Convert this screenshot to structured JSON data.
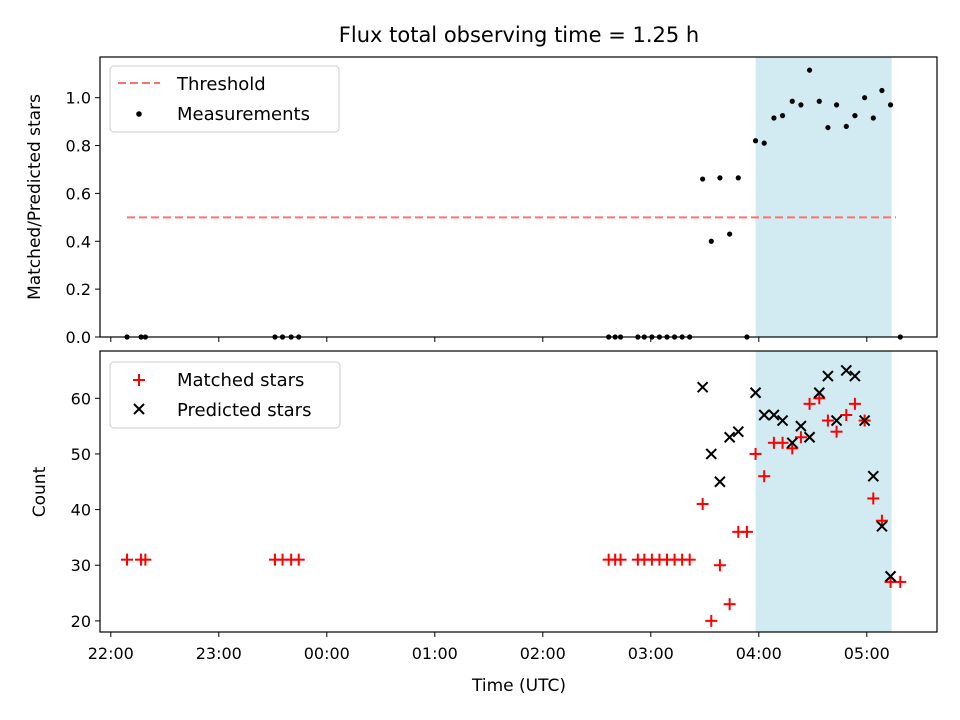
{
  "chart_data": {
    "title": "Flux total observing time = 1.25 h",
    "xlabel": "Time (UTC)",
    "x_unit": "hours relative to 00:00 UTC",
    "xlim": [
      -2.1,
      5.65
    ],
    "x_ticks": [
      {
        "value": -2,
        "label": "22:00"
      },
      {
        "value": -1,
        "label": "23:00"
      },
      {
        "value": 0,
        "label": "00:00"
      },
      {
        "value": 1,
        "label": "01:00"
      },
      {
        "value": 2,
        "label": "02:00"
      },
      {
        "value": 3,
        "label": "03:00"
      },
      {
        "value": 4,
        "label": "04:00"
      },
      {
        "value": 5,
        "label": "05:00"
      }
    ],
    "highlight_span": {
      "x_start": 3.97,
      "x_end": 5.23,
      "color": "#add8e6"
    },
    "panels": [
      {
        "id": "ratio",
        "type": "scatter",
        "ylabel": "Matched/Predicted stars",
        "ylim": [
          0,
          1.17
        ],
        "y_ticks": [
          0.0,
          0.2,
          0.4,
          0.6,
          0.8,
          1.0
        ],
        "y_tick_labels": [
          "0.0",
          "0.2",
          "0.4",
          "0.6",
          "0.8",
          "1.0"
        ],
        "legend": [
          {
            "label": "Threshold",
            "key": "threshold"
          },
          {
            "label": "Measurements",
            "key": "measurements"
          }
        ],
        "threshold": {
          "label": "Threshold",
          "y": 0.5,
          "x_start": -1.85,
          "x_end": 5.27,
          "color": "#ff7070"
        },
        "measurements": {
          "label": "Measurements",
          "color": "#000000",
          "points": [
            [
              -1.85,
              0.0
            ],
            [
              -1.72,
              0.0
            ],
            [
              -1.68,
              0.0
            ],
            [
              -0.48,
              0.0
            ],
            [
              -0.41,
              0.0
            ],
            [
              -0.33,
              0.0
            ],
            [
              -0.26,
              0.0
            ],
            [
              2.61,
              0.0
            ],
            [
              2.67,
              0.0
            ],
            [
              2.72,
              0.0
            ],
            [
              2.88,
              0.0
            ],
            [
              2.94,
              0.0
            ],
            [
              3.01,
              0.0
            ],
            [
              3.08,
              0.0
            ],
            [
              3.15,
              0.0
            ],
            [
              3.22,
              0.0
            ],
            [
              3.29,
              0.0
            ],
            [
              3.36,
              0.0
            ],
            [
              3.48,
              0.66
            ],
            [
              3.56,
              0.4
            ],
            [
              3.64,
              0.665
            ],
            [
              3.73,
              0.43
            ],
            [
              3.81,
              0.665
            ],
            [
              3.89,
              0.0
            ],
            [
              3.97,
              0.82
            ],
            [
              4.05,
              0.81
            ],
            [
              4.14,
              0.915
            ],
            [
              4.22,
              0.925
            ],
            [
              4.31,
              0.985
            ],
            [
              4.39,
              0.97
            ],
            [
              4.47,
              1.115
            ],
            [
              4.56,
              0.985
            ],
            [
              4.64,
              0.875
            ],
            [
              4.72,
              0.97
            ],
            [
              4.81,
              0.88
            ],
            [
              4.89,
              0.925
            ],
            [
              4.98,
              1.0
            ],
            [
              5.06,
              0.915
            ],
            [
              5.14,
              1.03
            ],
            [
              5.22,
              0.97
            ],
            [
              5.31,
              0.0
            ]
          ]
        }
      },
      {
        "id": "counts",
        "type": "scatter",
        "ylabel": "Count",
        "ylim": [
          18,
          68.5
        ],
        "y_ticks": [
          20,
          30,
          40,
          50,
          60
        ],
        "y_tick_labels": [
          "20",
          "30",
          "40",
          "50",
          "60"
        ],
        "legend": [
          {
            "label": "Matched stars",
            "key": "matched"
          },
          {
            "label": "Predicted stars",
            "key": "predicted"
          }
        ],
        "matched": {
          "label": "Matched stars",
          "color": "#ff0000",
          "points": [
            [
              -1.85,
              31
            ],
            [
              -1.72,
              31
            ],
            [
              -1.68,
              31
            ],
            [
              -0.48,
              31
            ],
            [
              -0.41,
              31
            ],
            [
              -0.33,
              31
            ],
            [
              -0.26,
              31
            ],
            [
              2.61,
              31
            ],
            [
              2.67,
              31
            ],
            [
              2.72,
              31
            ],
            [
              2.88,
              31
            ],
            [
              2.94,
              31
            ],
            [
              3.01,
              31
            ],
            [
              3.08,
              31
            ],
            [
              3.15,
              31
            ],
            [
              3.22,
              31
            ],
            [
              3.29,
              31
            ],
            [
              3.36,
              31
            ],
            [
              3.48,
              41
            ],
            [
              3.56,
              20
            ],
            [
              3.64,
              30
            ],
            [
              3.73,
              23
            ],
            [
              3.81,
              36
            ],
            [
              3.89,
              36
            ],
            [
              3.97,
              50
            ],
            [
              4.05,
              46
            ],
            [
              4.14,
              52
            ],
            [
              4.22,
              52
            ],
            [
              4.31,
              51
            ],
            [
              4.39,
              53
            ],
            [
              4.47,
              59
            ],
            [
              4.56,
              60
            ],
            [
              4.64,
              56
            ],
            [
              4.72,
              54
            ],
            [
              4.81,
              57
            ],
            [
              4.89,
              59
            ],
            [
              4.98,
              56
            ],
            [
              5.06,
              42
            ],
            [
              5.14,
              38
            ],
            [
              5.22,
              27
            ],
            [
              5.31,
              27
            ]
          ]
        },
        "predicted": {
          "label": "Predicted stars",
          "color": "#000000",
          "points": [
            [
              3.48,
              62
            ],
            [
              3.56,
              50
            ],
            [
              3.64,
              45
            ],
            [
              3.73,
              53
            ],
            [
              3.81,
              54
            ],
            [
              3.97,
              61
            ],
            [
              4.05,
              57
            ],
            [
              4.14,
              57
            ],
            [
              4.22,
              56
            ],
            [
              4.31,
              52
            ],
            [
              4.39,
              55
            ],
            [
              4.47,
              53
            ],
            [
              4.56,
              61
            ],
            [
              4.64,
              64
            ],
            [
              4.72,
              56
            ],
            [
              4.81,
              65
            ],
            [
              4.89,
              64
            ],
            [
              4.98,
              56
            ],
            [
              5.06,
              46
            ],
            [
              5.14,
              37
            ],
            [
              5.22,
              28
            ]
          ]
        }
      }
    ]
  }
}
